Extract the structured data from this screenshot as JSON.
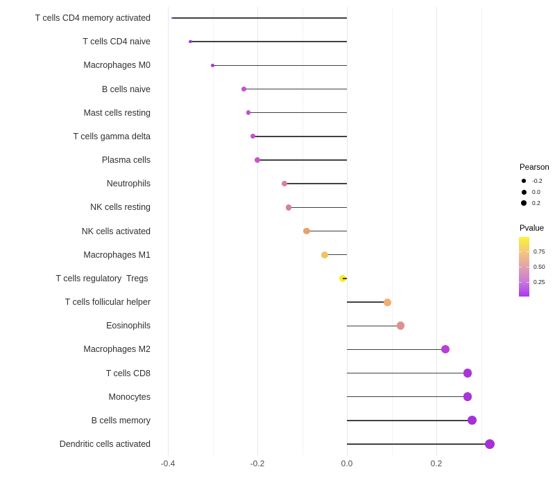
{
  "chart_data": {
    "type": "lollipop",
    "title": "",
    "xlabel": "",
    "ylabel": "",
    "baseline_x": 0.0,
    "x_axis": {
      "range": [
        -0.44,
        0.36
      ],
      "major_ticks": [
        -0.4,
        -0.2,
        0.0,
        0.2
      ],
      "tick_labels": [
        "-0.4",
        "-0.2",
        "0.0",
        "0.2"
      ],
      "minor_ticks": [
        -0.3,
        -0.1,
        0.1,
        0.3
      ]
    },
    "rows": [
      {
        "label": "T cells CD4 memory activated",
        "pearson": -0.39,
        "pvalue_approx": 0.06,
        "color": "#8826cc",
        "radius": 1.3
      },
      {
        "label": "T cells CD4 naive",
        "pearson": -0.35,
        "pvalue_approx": 0.12,
        "color": "#9e33db",
        "radius": 2.3
      },
      {
        "label": "Macrophages M0",
        "pearson": -0.3,
        "pvalue_approx": 0.14,
        "color": "#a138dc",
        "radius": 2.8
      },
      {
        "label": "B cells naive",
        "pearson": -0.23,
        "pvalue_approx": 0.28,
        "color": "#c253cd",
        "radius": 3.4
      },
      {
        "label": "Mast cells resting",
        "pearson": -0.22,
        "pvalue_approx": 0.28,
        "color": "#c253cd",
        "radius": 3.4
      },
      {
        "label": "T cells gamma delta",
        "pearson": -0.21,
        "pvalue_approx": 0.28,
        "color": "#c053ce",
        "radius": 3.5
      },
      {
        "label": "Plasma cells",
        "pearson": -0.2,
        "pvalue_approx": 0.3,
        "color": "#c458cb",
        "radius": 3.7
      },
      {
        "label": "Neutrophils",
        "pearson": -0.14,
        "pvalue_approx": 0.52,
        "color": "#d97f9e",
        "radius": 4.2
      },
      {
        "label": "NK cells resting",
        "pearson": -0.13,
        "pvalue_approx": 0.52,
        "color": "#d97f9e",
        "radius": 4.2
      },
      {
        "label": "NK cells activated",
        "pearson": -0.09,
        "pvalue_approx": 0.68,
        "color": "#e9a06b",
        "radius": 4.6
      },
      {
        "label": "Macrophages M1",
        "pearson": -0.05,
        "pvalue_approx": 0.8,
        "color": "#f2c35f",
        "radius": 5.0
      },
      {
        "label": "T cells regulatory  Tregs ",
        "pearson": -0.01,
        "pvalue_approx": 0.97,
        "color": "#f6ee1b",
        "radius": 5.0
      },
      {
        "label": "T cells follicular helper",
        "pearson": 0.09,
        "pvalue_approx": 0.72,
        "color": "#efae72",
        "radius": 5.5
      },
      {
        "label": "Eosinophils",
        "pearson": 0.12,
        "pvalue_approx": 0.56,
        "color": "#e0908f",
        "radius": 5.8
      },
      {
        "label": "Macrophages M2",
        "pearson": 0.22,
        "pvalue_approx": 0.22,
        "color": "#b83ed6",
        "radius": 6.0
      },
      {
        "label": "T cells CD8",
        "pearson": 0.27,
        "pvalue_approx": 0.14,
        "color": "#a934d8",
        "radius": 6.3
      },
      {
        "label": "Monocytes",
        "pearson": 0.27,
        "pvalue_approx": 0.14,
        "color": "#a934d8",
        "radius": 6.3
      },
      {
        "label": "B cells memory",
        "pearson": 0.28,
        "pvalue_approx": 0.11,
        "color": "#a62fd9",
        "radius": 6.5
      },
      {
        "label": "Dendritic cells activated",
        "pearson": 0.32,
        "pvalue_approx": 0.08,
        "color": "#a82fd6",
        "radius": 7.0
      }
    ],
    "legend_position": "right"
  },
  "legend": {
    "pearson": {
      "title": "Pearson",
      "entries": [
        {
          "label": "-0.2",
          "radius": 2.8
        },
        {
          "label": "0.0",
          "radius": 3.5
        },
        {
          "label": "0.2",
          "radius": 4.2
        }
      ],
      "dot_color": "#000000"
    },
    "pvalue": {
      "title": "Pvalue",
      "tick_labels": [
        "0.75",
        "0.50",
        "0.25"
      ],
      "gradient_top_to_bottom": [
        "#f9f53b",
        "#f3c77d",
        "#e2a2ab",
        "#ca7bd9",
        "#a937f0"
      ]
    }
  },
  "colors": {
    "background": "#ffffff",
    "stem": "#404040",
    "grid_major": "#e7e7e7",
    "grid_minor": "#f3f3f3",
    "axis_text": "#4d4d4d"
  }
}
